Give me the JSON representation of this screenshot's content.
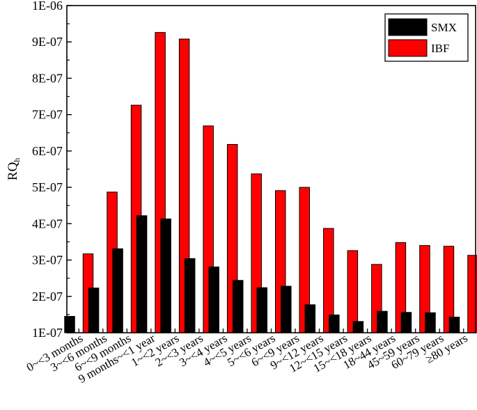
{
  "chart_data": {
    "type": "bar",
    "title": "",
    "xlabel": "",
    "ylabel": "RQ",
    "ylabel_sub": "h",
    "ylim": [
      1e-07,
      1e-06
    ],
    "yticks": [
      "1E-07",
      "2E-07",
      "3E-07",
      "4E-07",
      "5E-07",
      "6E-07",
      "7E-07",
      "8E-07",
      "9E-07",
      "1E-06"
    ],
    "categories": [
      "0~<3 months",
      "3~<6 months",
      "6~<9 months",
      "9 months~<1 year",
      "1~<2 years",
      "2~<3 years",
      "3~<4 years",
      "4~<5 years",
      "5~<6 years",
      "6~<9 years",
      "9~<12 years",
      "12~<15 years",
      "15~<18 years",
      "18~44 years",
      "45~59 years",
      "60~79 years",
      "≥80 years"
    ],
    "series": [
      {
        "name": "SMX",
        "color": "#000000",
        "values": [
          1.45e-07,
          2.23e-07,
          3.31e-07,
          4.22e-07,
          4.13e-07,
          3.04e-07,
          2.81e-07,
          2.44e-07,
          2.24e-07,
          2.28e-07,
          1.77e-07,
          1.49e-07,
          1.31e-07,
          1.59e-07,
          1.56e-07,
          1.55e-07,
          1.43e-07
        ]
      },
      {
        "name": "IBF",
        "color": "#ff0000",
        "values": [
          3.17e-07,
          4.87e-07,
          7.26e-07,
          9.26e-07,
          9.08e-07,
          6.69e-07,
          6.18e-07,
          5.37e-07,
          4.91e-07,
          5e-07,
          3.87e-07,
          3.26e-07,
          2.88e-07,
          3.48e-07,
          3.4e-07,
          3.38e-07,
          3.13e-07
        ]
      }
    ],
    "legend": "top-right",
    "grid": false
  }
}
